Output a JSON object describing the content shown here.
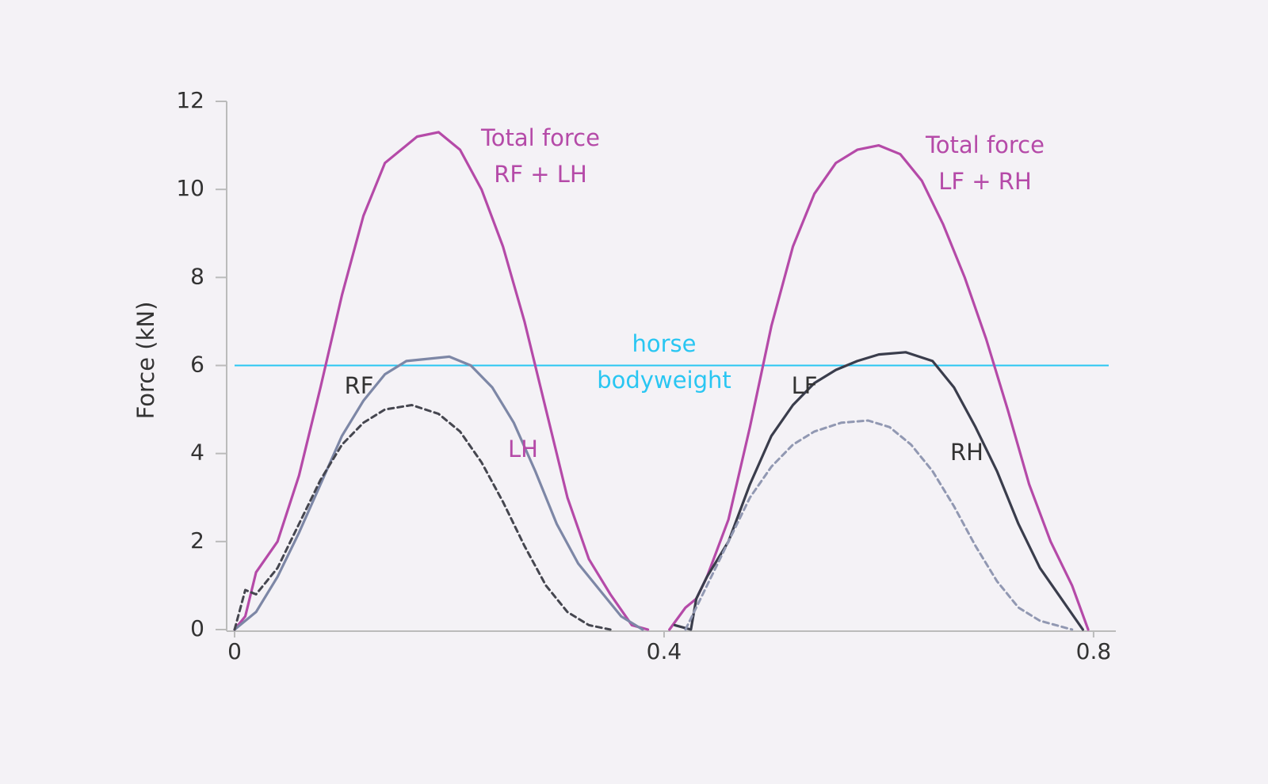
{
  "chart_data": {
    "type": "line",
    "y_label": "Force (kN)",
    "xlim": [
      0,
      0.82
    ],
    "xticks": [
      0,
      0.4,
      0.8
    ],
    "ylim": [
      0,
      12
    ],
    "yticks": [
      0,
      2,
      4,
      6,
      8,
      10,
      12
    ],
    "reference_line": {
      "value": 6,
      "label": [
        "horse",
        "bodyweight"
      ],
      "color": "#29c6f2"
    },
    "series": [
      {
        "label": [
          "Total force",
          "RF + LH"
        ],
        "color": "#b54aa8",
        "label_color": "#b54aa8",
        "dash": false,
        "x": [
          0,
          0.01,
          0.02,
          0.04,
          0.06,
          0.08,
          0.1,
          0.12,
          0.14,
          0.17,
          0.19,
          0.21,
          0.23,
          0.25,
          0.27,
          0.29,
          0.31,
          0.33,
          0.35,
          0.37,
          0.385
        ],
        "values": [
          0,
          0.3,
          1.3,
          2.0,
          3.5,
          5.5,
          7.6,
          9.4,
          10.6,
          11.2,
          11.3,
          10.9,
          10.0,
          8.7,
          7.0,
          5.0,
          3.0,
          1.6,
          0.8,
          0.1,
          0
        ]
      },
      {
        "label": [
          "Total force",
          "LF + RH"
        ],
        "color": "#b54aa8",
        "label_color": "#b54aa8",
        "dash": false,
        "x": [
          0.405,
          0.42,
          0.43,
          0.44,
          0.46,
          0.48,
          0.5,
          0.52,
          0.54,
          0.56,
          0.58,
          0.6,
          0.62,
          0.64,
          0.66,
          0.68,
          0.7,
          0.72,
          0.74,
          0.76,
          0.78,
          0.795
        ],
        "values": [
          0,
          0.5,
          0.7,
          1.2,
          2.5,
          4.6,
          6.9,
          8.7,
          9.9,
          10.6,
          10.9,
          11.0,
          10.8,
          10.2,
          9.2,
          8.0,
          6.6,
          5.0,
          3.3,
          2.0,
          1.0,
          0
        ]
      },
      {
        "label": [
          "RF"
        ],
        "color": "#7d87a6",
        "label_color": "#333333",
        "dash": false,
        "x": [
          0,
          0.02,
          0.04,
          0.06,
          0.08,
          0.1,
          0.12,
          0.14,
          0.16,
          0.2,
          0.22,
          0.24,
          0.26,
          0.28,
          0.3,
          0.32,
          0.34,
          0.36,
          0.38
        ],
        "values": [
          0,
          0.4,
          1.2,
          2.2,
          3.3,
          4.4,
          5.2,
          5.8,
          6.1,
          6.2,
          6.0,
          5.5,
          4.7,
          3.6,
          2.4,
          1.5,
          0.9,
          0.3,
          0
        ]
      },
      {
        "label": [
          "LH"
        ],
        "color": "#45464f",
        "label_color": "#b54aa8",
        "dash": true,
        "x": [
          0,
          0.01,
          0.02,
          0.04,
          0.06,
          0.08,
          0.1,
          0.12,
          0.14,
          0.165,
          0.19,
          0.21,
          0.23,
          0.25,
          0.27,
          0.29,
          0.31,
          0.33,
          0.35
        ],
        "values": [
          0,
          0.9,
          0.8,
          1.4,
          2.4,
          3.4,
          4.2,
          4.7,
          5.0,
          5.1,
          4.9,
          4.5,
          3.8,
          2.9,
          1.9,
          1.0,
          0.4,
          0.1,
          0
        ]
      },
      {
        "label": [
          "LF"
        ],
        "color": "#3a3d4c",
        "label_color": "#333333",
        "dash": false,
        "x": [
          0.41,
          0.425,
          0.43,
          0.44,
          0.46,
          0.48,
          0.5,
          0.52,
          0.54,
          0.56,
          0.58,
          0.6,
          0.625,
          0.65,
          0.67,
          0.69,
          0.71,
          0.73,
          0.75,
          0.77,
          0.79
        ],
        "values": [
          0.1,
          0,
          0.7,
          1.2,
          2.0,
          3.3,
          4.4,
          5.1,
          5.6,
          5.9,
          6.1,
          6.25,
          6.3,
          6.1,
          5.5,
          4.6,
          3.6,
          2.4,
          1.4,
          0.7,
          0
        ]
      },
      {
        "label": [
          "RH"
        ],
        "color": "#9198b2",
        "label_color": "#333333",
        "dash": true,
        "x": [
          0.42,
          0.44,
          0.46,
          0.48,
          0.5,
          0.52,
          0.54,
          0.565,
          0.59,
          0.61,
          0.63,
          0.65,
          0.67,
          0.69,
          0.71,
          0.73,
          0.75,
          0.78
        ],
        "values": [
          0,
          1.0,
          2.0,
          3.0,
          3.7,
          4.2,
          4.5,
          4.7,
          4.75,
          4.6,
          4.2,
          3.6,
          2.8,
          1.9,
          1.1,
          0.5,
          0.2,
          0
        ]
      }
    ]
  }
}
